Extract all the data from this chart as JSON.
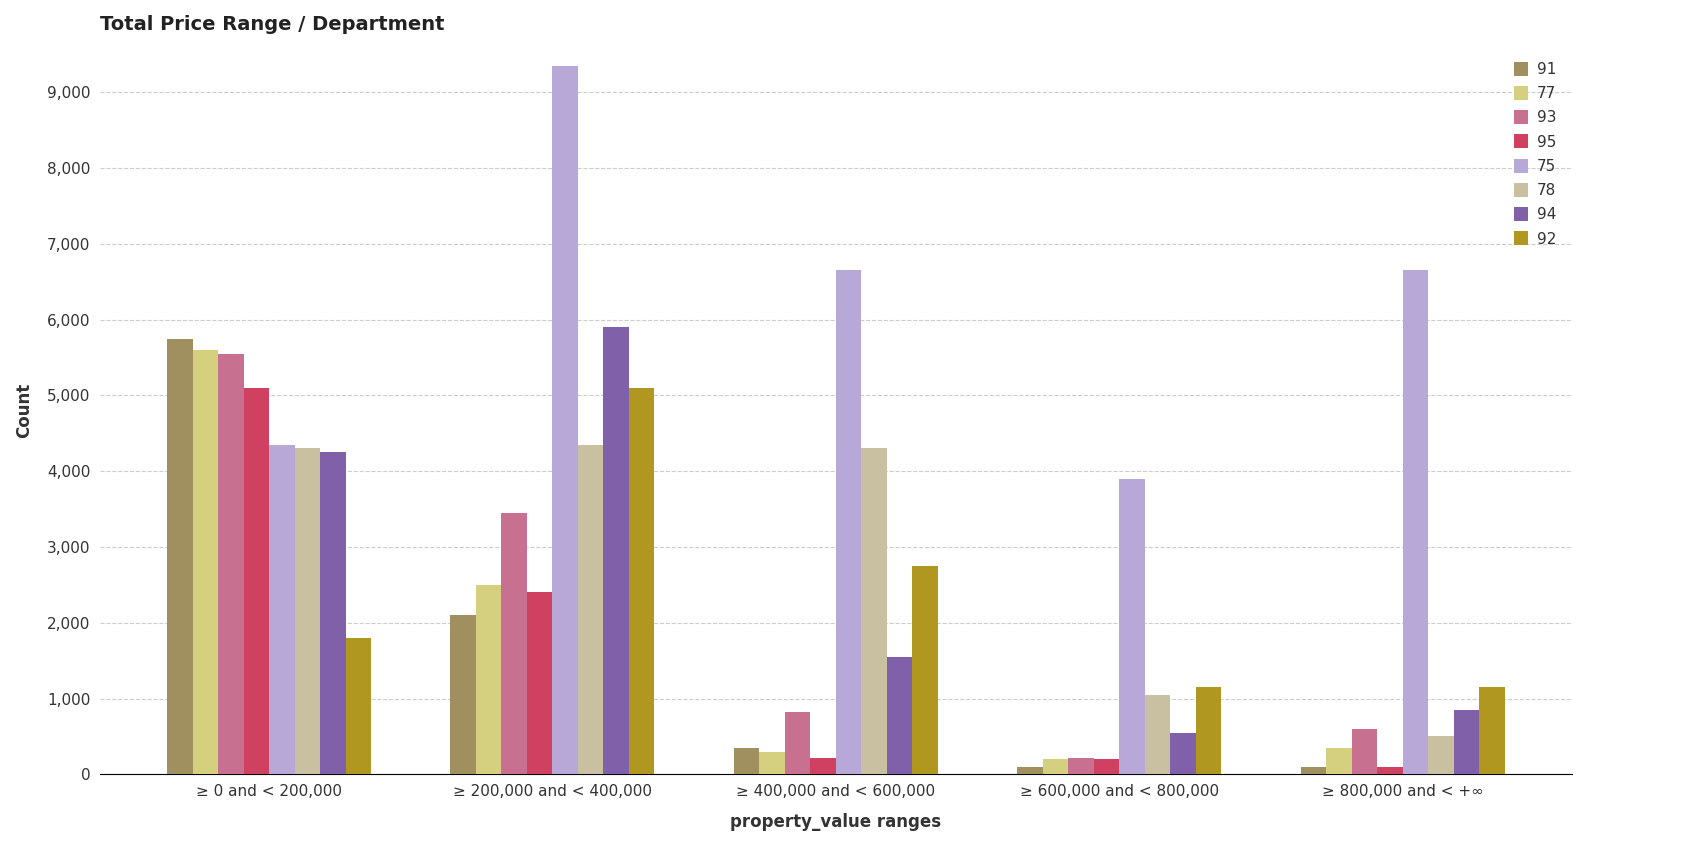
{
  "title": "Total Price Range / Department",
  "xlabel": "property_value ranges",
  "ylabel": "Count",
  "categories": [
    "≥ 0 and < 200,000",
    "≥ 200,000 and < 400,000",
    "≥ 400,000 and < 600,000",
    "≥ 600,000 and < 800,000",
    "≥ 800,000 and < +∞"
  ],
  "departments": [
    "91",
    "77",
    "93",
    "95",
    "75",
    "78",
    "94",
    "92"
  ],
  "colors": {
    "91": "#a09060",
    "77": "#d4d080",
    "93": "#c87090",
    "95": "#d04060",
    "75": "#b8a8d8",
    "78": "#c8c0a0",
    "94": "#8060a8",
    "92": "#b09820"
  },
  "values": {
    "91": [
      5750,
      2100,
      350,
      100,
      100
    ],
    "77": [
      5600,
      2500,
      300,
      200,
      350
    ],
    "93": [
      5550,
      3450,
      820,
      220,
      600
    ],
    "95": [
      5100,
      2400,
      220,
      200,
      100
    ],
    "75": [
      4350,
      9350,
      6650,
      3900,
      6650
    ],
    "78": [
      4300,
      4350,
      4300,
      1050,
      500
    ],
    "94": [
      4250,
      5900,
      1550,
      550,
      850
    ],
    "92": [
      1800,
      5100,
      2750,
      1150,
      1150
    ]
  },
  "ylim": [
    0,
    9600
  ],
  "yticks": [
    0,
    1000,
    2000,
    3000,
    4000,
    5000,
    6000,
    7000,
    8000,
    9000
  ],
  "background_color": "#ffffff",
  "plot_bg_color": "#ffffff",
  "grid_color": "#cccccc",
  "title_fontsize": 14,
  "axis_label_fontsize": 12,
  "tick_fontsize": 11,
  "legend_fontsize": 11
}
